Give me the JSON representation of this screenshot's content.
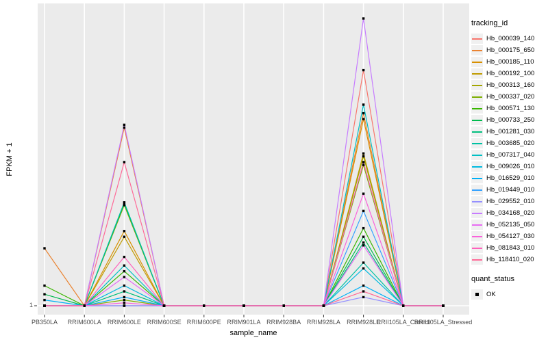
{
  "figure": {
    "background": "#FFFFFF",
    "panel_background": "#EBEBEB",
    "grid_color": "#FFFFFF",
    "tick_label_color": "#4D4D4D",
    "point_color": "#000000"
  },
  "y_axis": {
    "title": "FPKM + 1",
    "tick_labels": [
      "1"
    ]
  },
  "x_axis": {
    "title": "sample_name"
  },
  "legend": {
    "tracking_title": "tracking_id",
    "quant_title": "quant_status",
    "quant_label": "OK"
  },
  "chart_data": {
    "type": "line",
    "title": "",
    "xlabel": "sample_name",
    "ylabel": "FPKM + 1",
    "x_categories": [
      "PB350LA",
      "RRIM600LA",
      "RRIM600LE",
      "RRIM600SE",
      "RRIM600PE",
      "RRIM901LA",
      "RRIM928BA",
      "RRIM928LA",
      "RRIM928LE",
      "RRII105LA_Control",
      "RRII105LA_Stressed"
    ],
    "y_ticks": [
      "1"
    ],
    "y_scale_note": "log-style axis; only the tick '1' (baseline) is labeled. Series values are estimated fractions of panel height above the FPKM+1 = 1 baseline (0 = 1, 1.0 = tallest peak).",
    "grid": "vertical white gridline per category, horizontal white gridline at y = 1",
    "legend_position": "right",
    "point_legend": {
      "name": "quant_status",
      "value": "OK",
      "marker": "small black square at every sample point"
    },
    "series": [
      {
        "name": "Hb_000039_140",
        "color": "#F8766D",
        "values": [
          0,
          0,
          0,
          0,
          0,
          0,
          0,
          0,
          0.82,
          0,
          0
        ]
      },
      {
        "name": "Hb_000175_650",
        "color": "#EA8331",
        "values": [
          0.2,
          0,
          0.62,
          0,
          0,
          0,
          0,
          0,
          0.67,
          0,
          0
        ]
      },
      {
        "name": "Hb_000185_110",
        "color": "#D89000",
        "values": [
          0,
          0,
          0.26,
          0,
          0,
          0,
          0,
          0,
          0.65,
          0,
          0
        ]
      },
      {
        "name": "Hb_000192_100",
        "color": "#C09B00",
        "values": [
          0,
          0,
          0.24,
          0,
          0,
          0,
          0,
          0,
          0.53,
          0,
          0
        ]
      },
      {
        "name": "Hb_000313_160",
        "color": "#A3A500",
        "values": [
          0,
          0,
          0.35,
          0,
          0,
          0,
          0,
          0,
          0.52,
          0,
          0
        ]
      },
      {
        "name": "Hb_000337_020",
        "color": "#7CAE00",
        "values": [
          0,
          0,
          0.02,
          0,
          0,
          0,
          0,
          0,
          0.49,
          0,
          0
        ]
      },
      {
        "name": "Hb_000571_130",
        "color": "#39B600",
        "values": [
          0.07,
          0,
          0.12,
          0,
          0,
          0,
          0,
          0,
          0.27,
          0,
          0
        ]
      },
      {
        "name": "Hb_000733_250",
        "color": "#00BB4E",
        "values": [
          0.04,
          0,
          0.355,
          0,
          0,
          0,
          0,
          0,
          0.24,
          0,
          0
        ]
      },
      {
        "name": "Hb_001281_030",
        "color": "#00BF7D",
        "values": [
          0,
          0,
          0.05,
          0,
          0,
          0,
          0,
          0,
          0.22,
          0,
          0
        ]
      },
      {
        "name": "Hb_003685_020",
        "color": "#00C1A3",
        "values": [
          0,
          0,
          0.36,
          0,
          0,
          0,
          0,
          0,
          0.15,
          0,
          0
        ]
      },
      {
        "name": "Hb_007317_040",
        "color": "#00BFC4",
        "values": [
          0,
          0,
          0.14,
          0,
          0,
          0,
          0,
          0,
          0.7,
          0,
          0
        ]
      },
      {
        "name": "Hb_009026_010",
        "color": "#00BAE0",
        "values": [
          0,
          0,
          0.07,
          0,
          0,
          0,
          0,
          0,
          0.13,
          0,
          0
        ]
      },
      {
        "name": "Hb_016529_010",
        "color": "#00B0F6",
        "values": [
          0.02,
          0,
          0.03,
          0,
          0,
          0,
          0,
          0,
          0.07,
          0,
          0
        ]
      },
      {
        "name": "Hb_019449_010",
        "color": "#35A2FF",
        "values": [
          0,
          0,
          0,
          0,
          0,
          0,
          0,
          0,
          0.33,
          0,
          0
        ]
      },
      {
        "name": "Hb_029552_010",
        "color": "#9590FF",
        "values": [
          0,
          0,
          0,
          0,
          0,
          0,
          0,
          0,
          0.03,
          0,
          0
        ]
      },
      {
        "name": "Hb_034168_020",
        "color": "#C77CFF",
        "values": [
          0,
          0,
          0.63,
          0,
          0,
          0,
          0,
          0,
          1.0,
          0,
          0
        ]
      },
      {
        "name": "Hb_052135_050",
        "color": "#E76BF3",
        "values": [
          0,
          0,
          0.1,
          0,
          0,
          0,
          0,
          0,
          0.21,
          0,
          0
        ]
      },
      {
        "name": "Hb_054127_030",
        "color": "#FA62DB",
        "values": [
          0,
          0,
          0.01,
          0,
          0,
          0,
          0,
          0,
          0.39,
          0,
          0
        ]
      },
      {
        "name": "Hb_081843_010",
        "color": "#FF62BC",
        "values": [
          0,
          0,
          0.17,
          0,
          0,
          0,
          0,
          0,
          0.5,
          0,
          0
        ]
      },
      {
        "name": "Hb_118410_020",
        "color": "#FF6A98",
        "values": [
          0,
          0,
          0.5,
          0,
          0,
          0,
          0,
          0,
          0.05,
          0,
          0
        ]
      }
    ]
  }
}
